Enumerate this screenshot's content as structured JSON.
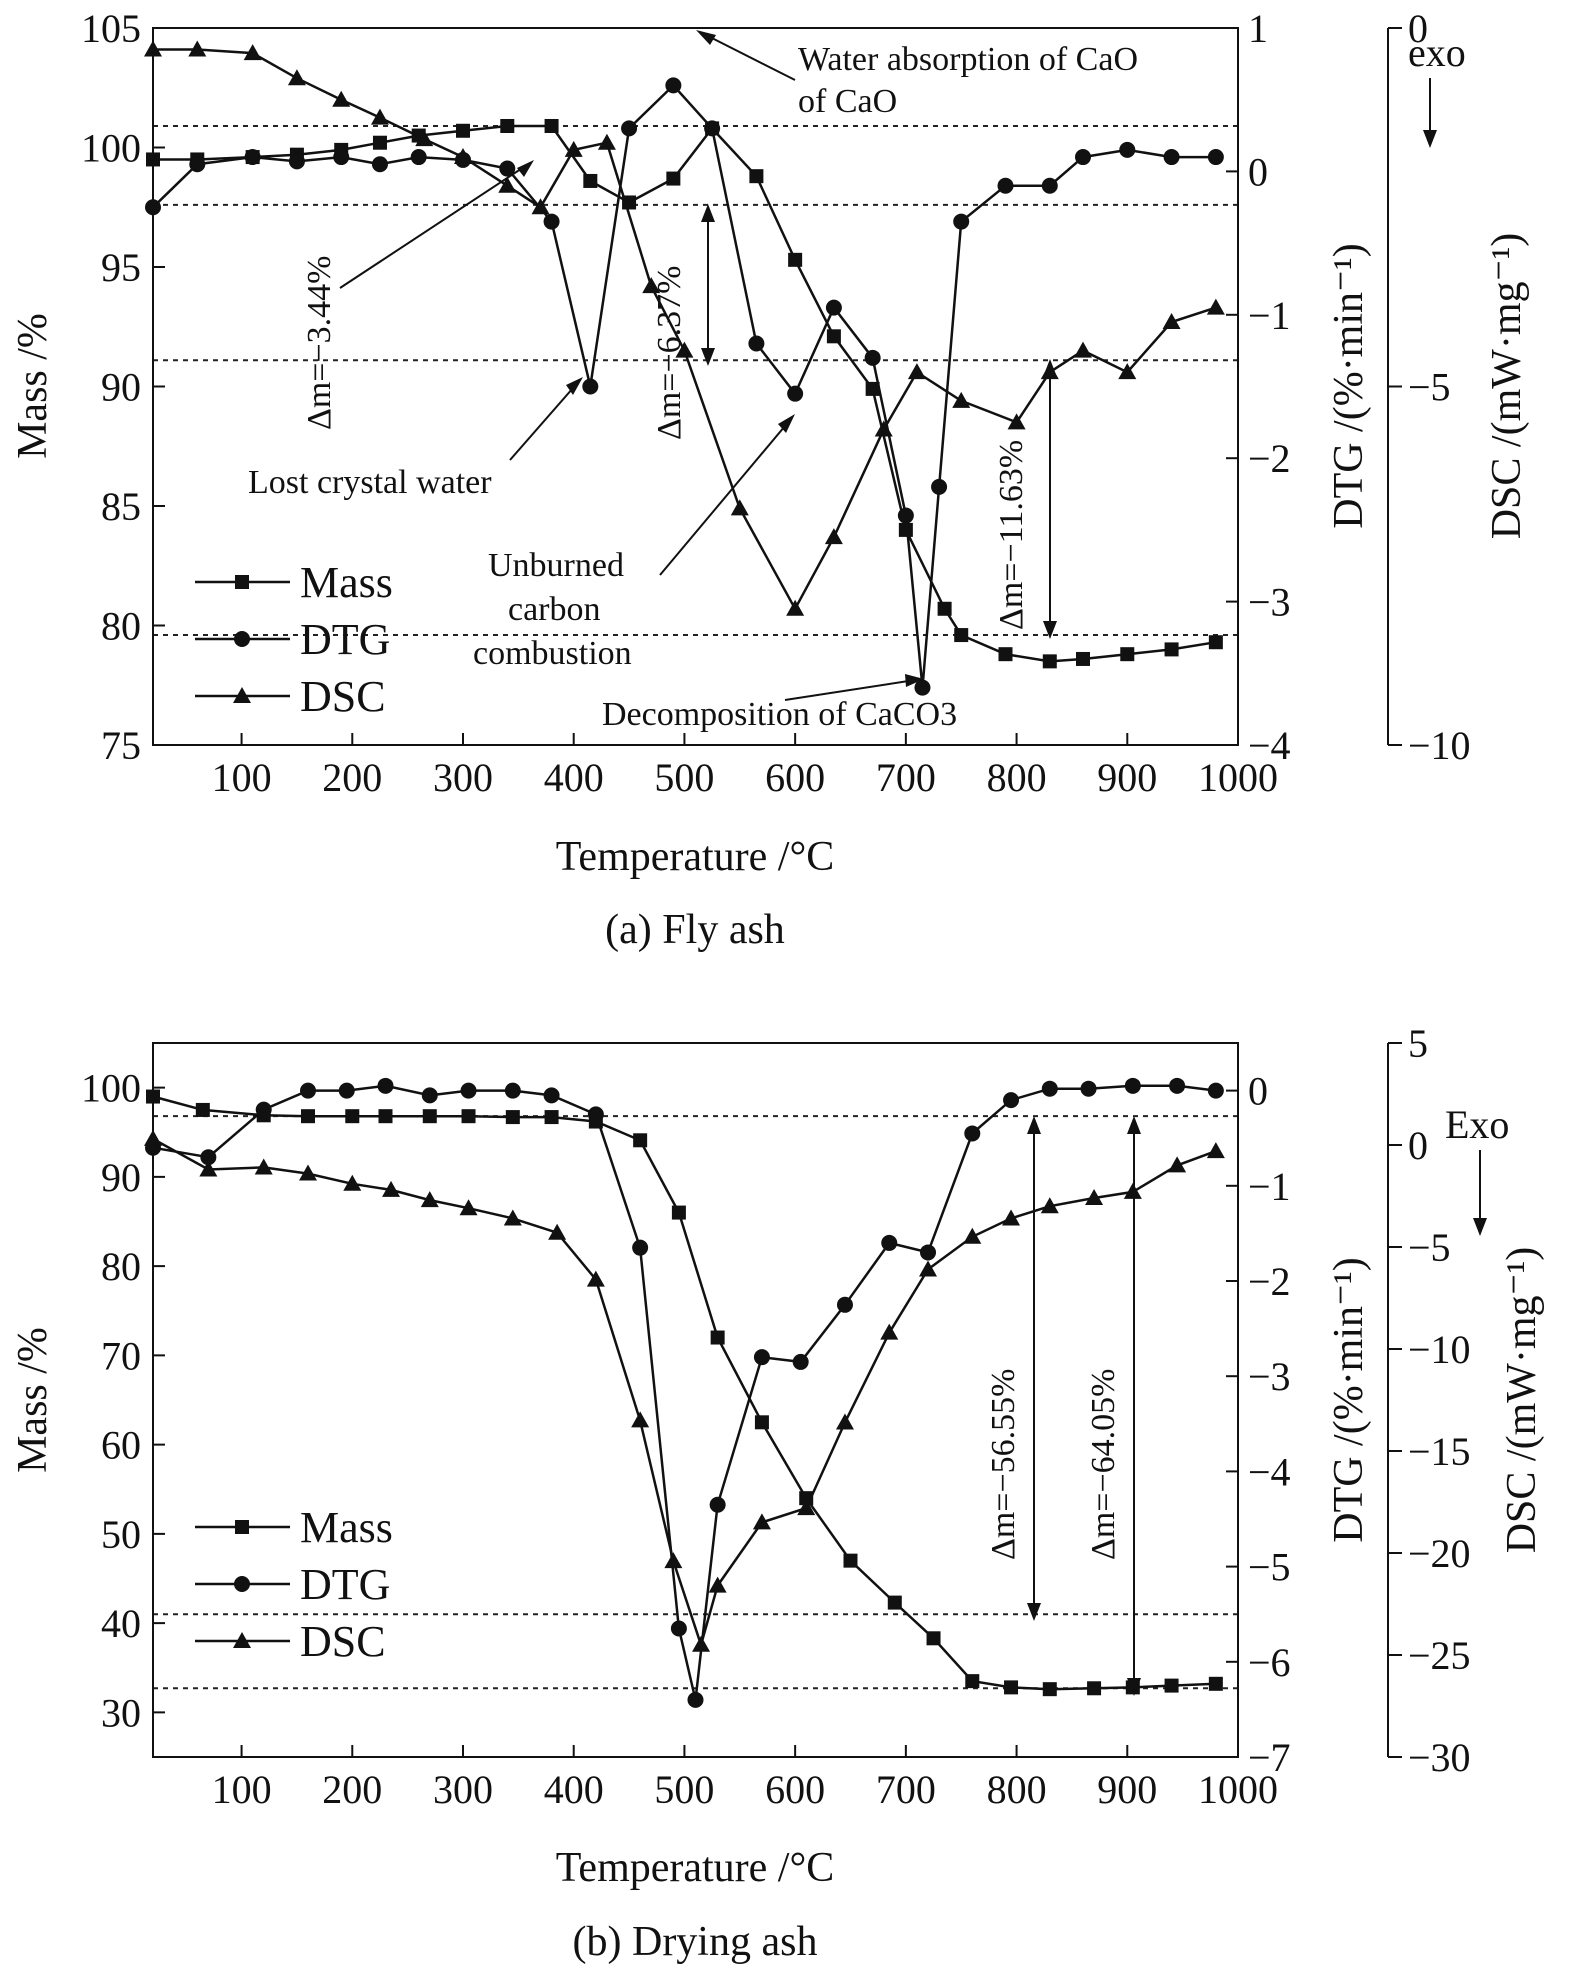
{
  "chart_data": [
    {
      "id": "a",
      "type": "line",
      "caption": "(a) Fly ash",
      "xlabel": "Temperature /°C",
      "xlim": [
        20,
        1000
      ],
      "xticks": [
        100,
        200,
        300,
        400,
        500,
        600,
        700,
        800,
        900,
        1000
      ],
      "ylabel_left": "Mass /%",
      "ylim_left": [
        75,
        105
      ],
      "yticks_left": [
        75,
        80,
        85,
        90,
        95,
        100,
        105
      ],
      "ylabel_mid": "DTG /(%·min⁻¹)",
      "ylim_mid": [
        -4,
        1
      ],
      "yticks_mid": [
        -4,
        -3,
        -2,
        -1,
        0,
        1
      ],
      "ylabel_right": "DSC /(mW·mg⁻¹)",
      "ylim_right": [
        -10,
        0
      ],
      "yticks_right": [
        -10,
        -5,
        0
      ],
      "exo_label": "exo",
      "legend": [
        "Mass",
        "DTG",
        "DSC"
      ],
      "ref_lines_mass": [
        100.9,
        97.6,
        91.1,
        79.6
      ],
      "series": [
        {
          "name": "Mass",
          "marker": "square",
          "axis": "left",
          "x": [
            20,
            60,
            110,
            150,
            190,
            225,
            260,
            300,
            340,
            380,
            415,
            450,
            490,
            525,
            565,
            600,
            635,
            670,
            700,
            735,
            750,
            790,
            830,
            860,
            900,
            940,
            980
          ],
          "y": [
            99.5,
            99.5,
            99.6,
            99.7,
            99.9,
            100.2,
            100.5,
            100.7,
            100.9,
            100.9,
            98.6,
            97.7,
            98.7,
            100.8,
            98.8,
            95.3,
            92.1,
            89.9,
            84,
            80.7,
            79.6,
            78.8,
            78.5,
            78.6,
            78.8,
            79.0,
            79.3
          ]
        },
        {
          "name": "DTG",
          "marker": "circle",
          "axis": "mid",
          "x": [
            20,
            60,
            110,
            150,
            190,
            225,
            260,
            300,
            340,
            380,
            415,
            450,
            490,
            525,
            565,
            600,
            635,
            670,
            700,
            715,
            730,
            750,
            790,
            830,
            860,
            900,
            940,
            980
          ],
          "y": [
            -0.25,
            0.05,
            0.1,
            0.07,
            0.1,
            0.05,
            0.1,
            0.08,
            0.02,
            -0.35,
            -1.5,
            0.3,
            0.6,
            0.3,
            -1.2,
            -1.55,
            -0.95,
            -1.3,
            -2.4,
            -3.6,
            -2.2,
            -0.35,
            -0.1,
            -0.1,
            0.1,
            0.15,
            0.1,
            0.1
          ]
        },
        {
          "name": "DSC",
          "marker": "triangle",
          "axis": "right",
          "x": [
            20,
            60,
            110,
            150,
            190,
            225,
            265,
            300,
            340,
            370,
            400,
            430,
            470,
            500,
            550,
            600,
            635,
            680,
            710,
            750,
            800,
            830,
            860,
            900,
            940,
            980
          ],
          "y": [
            -0.3,
            -0.3,
            -0.35,
            -0.7,
            -1.0,
            -1.25,
            -1.55,
            -1.8,
            -2.2,
            -2.5,
            -1.7,
            -1.6,
            -3.6,
            -4.5,
            -6.7,
            -8.1,
            -7.1,
            -5.6,
            -4.8,
            -5.2,
            -5.5,
            -4.8,
            -4.5,
            -4.8,
            -4.1,
            -3.9
          ]
        }
      ],
      "annotations": [
        "Water absorption of CaO",
        "Lost crystal water",
        "Unburned carbon combustion",
        "Decomposition of CaCO3"
      ],
      "mass_changes": [
        "Δm=−3.44%",
        "Δm=−6.37%",
        "Δm=−11.63%"
      ]
    },
    {
      "id": "b",
      "type": "line",
      "caption": "(b) Drying ash",
      "xlabel": "Temperature /°C",
      "xlim": [
        20,
        1000
      ],
      "xticks": [
        100,
        200,
        300,
        400,
        500,
        600,
        700,
        800,
        900,
        1000
      ],
      "ylabel_left": "Mass /%",
      "ylim_left": [
        25,
        105
      ],
      "yticks_left": [
        30,
        40,
        50,
        60,
        70,
        80,
        90,
        100
      ],
      "ylabel_mid": "DTG /(%·min⁻¹)",
      "ylim_mid": [
        -7,
        0.5
      ],
      "yticks_mid": [
        -7,
        -6,
        -5,
        -4,
        -3,
        -2,
        -1,
        0
      ],
      "ylabel_right": "DSC /(mW·mg⁻¹)",
      "ylim_right": [
        -30,
        5
      ],
      "yticks_right": [
        -30,
        -25,
        -20,
        -15,
        -10,
        -5,
        0,
        5
      ],
      "exo_label": "Exo",
      "legend": [
        "Mass",
        "DTG",
        "DSC"
      ],
      "ref_lines_mass": [
        96.8,
        41,
        32.7
      ],
      "series": [
        {
          "name": "Mass",
          "marker": "square",
          "axis": "left",
          "x": [
            20,
            65,
            120,
            160,
            200,
            230,
            270,
            305,
            345,
            380,
            420,
            460,
            495,
            530,
            570,
            610,
            650,
            690,
            725,
            760,
            795,
            830,
            870,
            905,
            940,
            980
          ],
          "y": [
            99,
            97.5,
            96.9,
            96.8,
            96.8,
            96.8,
            96.8,
            96.8,
            96.7,
            96.7,
            96.2,
            94.1,
            86,
            72,
            62.5,
            54,
            47,
            42.3,
            38.3,
            33.5,
            32.8,
            32.6,
            32.7,
            32.8,
            33.0,
            33.2
          ]
        },
        {
          "name": "DTG",
          "marker": "circle",
          "axis": "mid",
          "x": [
            20,
            70,
            120,
            160,
            195,
            230,
            270,
            305,
            345,
            380,
            420,
            460,
            495,
            510,
            530,
            570,
            605,
            645,
            685,
            720,
            760,
            795,
            830,
            865,
            905,
            945,
            980
          ],
          "y": [
            -0.6,
            -0.7,
            -0.2,
            0.0,
            0.0,
            0.05,
            -0.05,
            0.0,
            0.0,
            -0.05,
            -0.25,
            -1.65,
            -5.65,
            -6.4,
            -4.35,
            -2.8,
            -2.85,
            -2.25,
            -1.6,
            -1.7,
            -0.45,
            -0.1,
            0.02,
            0.02,
            0.05,
            0.05,
            0.0
          ]
        },
        {
          "name": "DSC",
          "marker": "triangle",
          "axis": "right",
          "x": [
            20,
            70,
            120,
            160,
            200,
            235,
            270,
            305,
            345,
            385,
            420,
            460,
            490,
            515,
            530,
            570,
            610,
            645,
            685,
            720,
            760,
            795,
            830,
            870,
            905,
            945,
            980
          ],
          "y": [
            0.3,
            -1.2,
            -1.1,
            -1.4,
            -1.9,
            -2.2,
            -2.7,
            -3.1,
            -3.6,
            -4.3,
            -6.6,
            -13.5,
            -20.4,
            -24.5,
            -21.6,
            -18.5,
            -17.8,
            -13.6,
            -9.2,
            -6.1,
            -4.5,
            -3.6,
            -3.0,
            -2.6,
            -2.3,
            -1.0,
            -0.3
          ]
        }
      ],
      "mass_changes": [
        "Δm=−56.55%",
        "Δm=−64.05%"
      ]
    }
  ]
}
